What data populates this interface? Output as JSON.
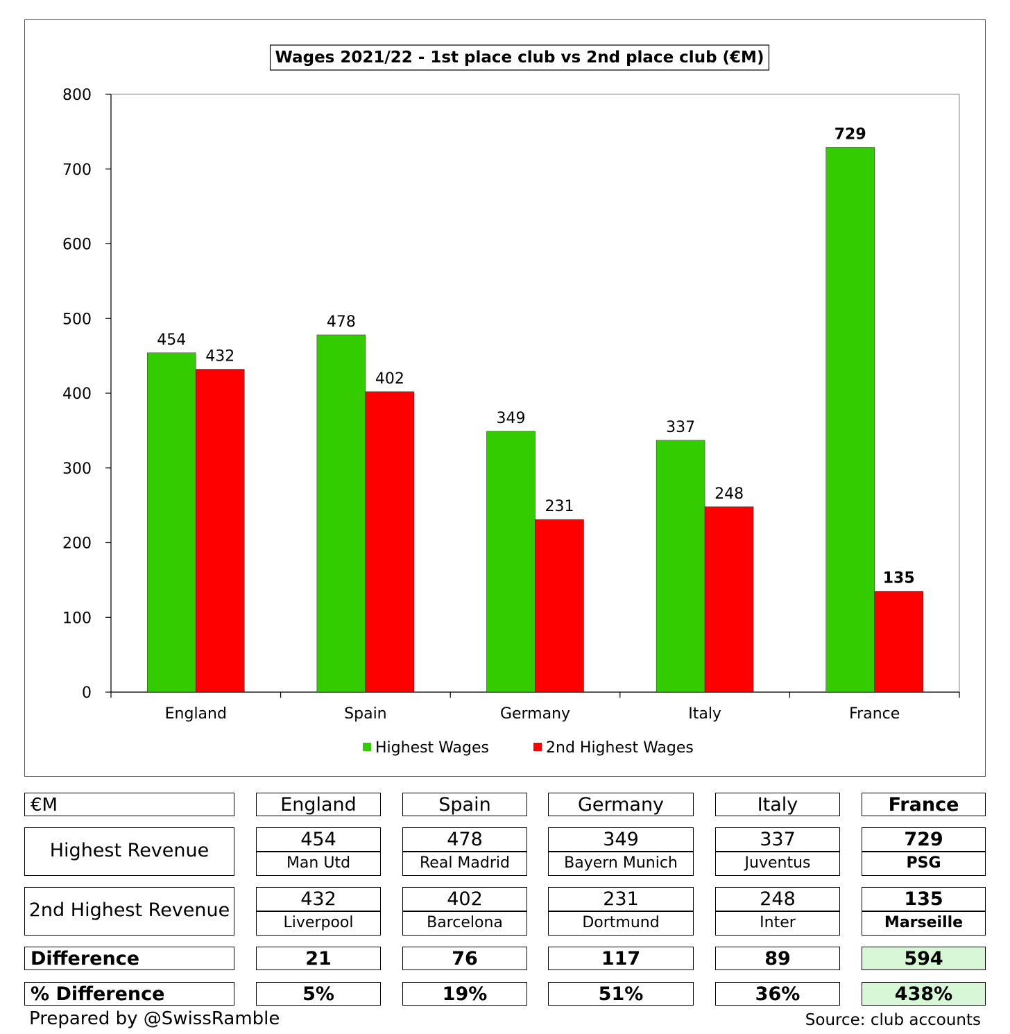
{
  "chart_data": {
    "type": "bar",
    "title": "Wages 2021/22 - 1st place club vs 2nd place club (€M)",
    "categories": [
      "England",
      "Spain",
      "Germany",
      "Italy",
      "France"
    ],
    "series": [
      {
        "name": "Highest Wages",
        "color": "#33cc00",
        "values": [
          454,
          478,
          349,
          337,
          729
        ]
      },
      {
        "name": "2nd Highest Wages",
        "color": "#ff0000",
        "values": [
          432,
          402,
          231,
          248,
          135
        ]
      }
    ],
    "bold_labels_category": "France",
    "ylim": [
      0,
      800
    ],
    "yticks": [
      0,
      100,
      200,
      300,
      400,
      500,
      600,
      700,
      800
    ],
    "grid": false,
    "legend_position": "bottom"
  },
  "table": {
    "unit_label": "€M",
    "countries": [
      "England",
      "Spain",
      "Germany",
      "Italy",
      "France"
    ],
    "rows": [
      {
        "label": "Highest Revenue",
        "values": [
          "454",
          "478",
          "349",
          "337",
          "729"
        ],
        "clubs": [
          "Man Utd",
          "Real Madrid",
          "Bayern Munich",
          "Juventus",
          "PSG"
        ]
      },
      {
        "label": "2nd Highest Revenue",
        "values": [
          "432",
          "402",
          "231",
          "248",
          "135"
        ],
        "clubs": [
          "Liverpool",
          "Barcelona",
          "Dortmund",
          "Inter",
          "Marseille"
        ]
      }
    ],
    "difference": {
      "label": "Difference",
      "values": [
        "21",
        "76",
        "117",
        "89",
        "594"
      ]
    },
    "pct_difference": {
      "label": "% Difference",
      "values": [
        "5%",
        "19%",
        "51%",
        "36%",
        "438%"
      ]
    },
    "highlight_color": "#d8f7d6"
  },
  "footer": {
    "prepared_by": "Prepared by @SwissRamble",
    "source": "Source: club accounts"
  }
}
